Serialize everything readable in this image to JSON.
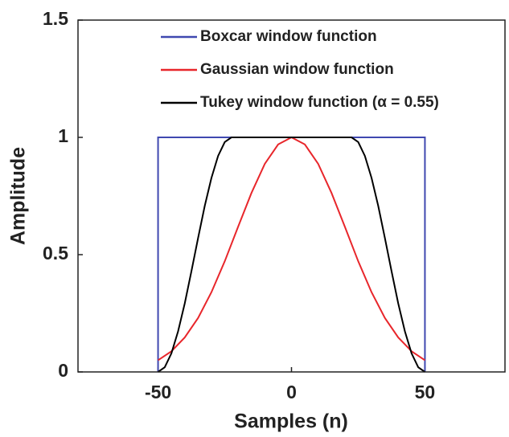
{
  "chart_data": {
    "type": "line",
    "x_label": "Samples (n)",
    "y_label": "Amplitude",
    "xlim": [
      -80,
      80
    ],
    "xticks": [
      -50,
      0,
      50
    ],
    "ylim": [
      0,
      1.5
    ],
    "yticks": [
      0,
      0.5,
      1,
      1.5
    ],
    "legend": "top",
    "series": [
      {
        "name": "Boxcar window function",
        "color": "#3f48b0",
        "x": [
          -50,
          -50,
          50,
          50
        ],
        "values": [
          0,
          1,
          1,
          0
        ]
      },
      {
        "name": "Gaussian window function",
        "color": "#e8262b",
        "x": [
          -50,
          -45,
          -40,
          -35,
          -30,
          -25,
          -20,
          -15,
          -10,
          -5,
          0,
          5,
          10,
          15,
          20,
          25,
          30,
          35,
          40,
          45,
          50
        ],
        "values": [
          0.05,
          0.088,
          0.147,
          0.23,
          0.34,
          0.472,
          0.619,
          0.763,
          0.887,
          0.97,
          1,
          0.97,
          0.887,
          0.763,
          0.619,
          0.472,
          0.34,
          0.23,
          0.147,
          0.088,
          0.05
        ]
      },
      {
        "name": "Tukey window function (α = 0.55)",
        "color": "#000000",
        "x": [
          -50,
          -47.5,
          -45,
          -42.5,
          -40,
          -37.5,
          -35,
          -32.5,
          -30,
          -27.5,
          -25,
          -22.5,
          22.5,
          25,
          27.5,
          30,
          32.5,
          35,
          37.5,
          40,
          42.5,
          45,
          47.5,
          50
        ],
        "values": [
          0,
          0.02,
          0.079,
          0.173,
          0.292,
          0.429,
          0.571,
          0.708,
          0.827,
          0.921,
          0.98,
          1,
          1,
          0.98,
          0.921,
          0.827,
          0.708,
          0.571,
          0.429,
          0.292,
          0.173,
          0.079,
          0.02,
          0
        ]
      }
    ]
  }
}
